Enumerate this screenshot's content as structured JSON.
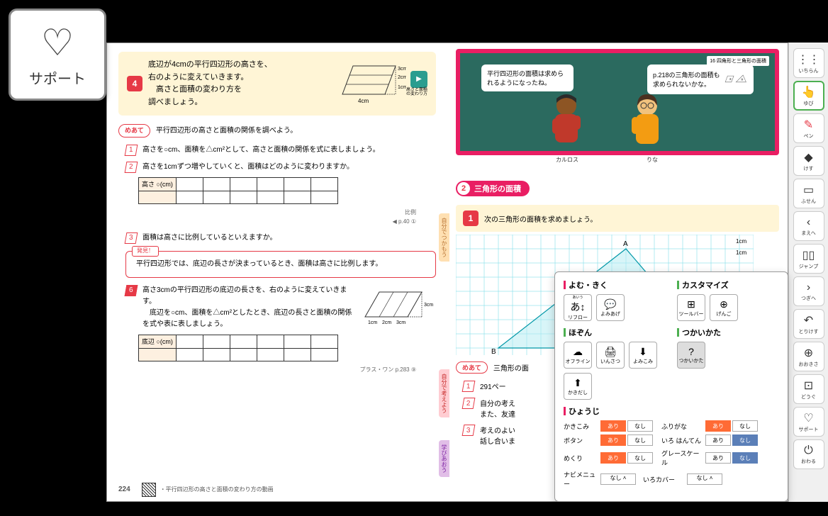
{
  "support": {
    "label": "サポート"
  },
  "left": {
    "box4": {
      "num": "4",
      "text": "底辺が4cmの平行四辺形の高さを、\n右のように変えていきます。\n　高さと面積の変わり方を\n調べましょう。",
      "dims": {
        "base": "4cm",
        "h1": "3cm",
        "h2": "2cm",
        "h3": "1cm"
      },
      "media_caption": "高さと面積の変わり方"
    },
    "meate": "平行四辺形の高さと面積の関係を調べよう。",
    "q1": "高さを○cm、面積を△cm²として、高さと面積の関係を式に表しましょう。",
    "q2": "高さを1cmずつ増やしていくと、面積はどのように変わりますか。",
    "table_header": "高さ ○(cm)",
    "page_ref1": "比例\n◀ p.40 ①",
    "q3": "面積は高さに比例しているといえますか。",
    "discover_label": "発見！",
    "discover_text": "平行四辺形では、底辺の長さが決まっているとき、面積は高さに比例します。",
    "q6_num": "6",
    "q6": "高さ3cmの平行四辺形の底辺の長さを、右のように変えていきます。\n　底辺を○cm、面積を△cm²としたとき、底辺の長さと面積の関係を式や表に表しましょう。",
    "q6_dims": {
      "h": "3cm",
      "b1": "1cm",
      "b2": "2cm",
      "b3": "3cm"
    },
    "table2_header": "底辺 ○(cm)",
    "plus_one": "プラス・ワン  p.283 ⑨",
    "page_num": "224",
    "footer": "・平行四辺形の高さと面積の変わり方の動画"
  },
  "right": {
    "header_tag": "16 四角形と三角形の面積",
    "speech1": "平行四辺形の面積は求められるようになったね。",
    "speech2": "p.218の三角形の面積も求められないかな。",
    "names": {
      "p1": "カルロス",
      "p2": "りな"
    },
    "section_num": "2",
    "section_title": "三角形の面積",
    "learn_tags": {
      "a": "じっくり深く",
      "b": "学び合おう！"
    },
    "box1_num": "1",
    "box1_text": "次の三角形の面積を求めましょう。",
    "grid_labels": {
      "a": "A",
      "b": "B",
      "unit": "1cm"
    },
    "meate2": "三角形の面",
    "q1": "291ペー",
    "q2": "自分の考え\nまた、友達",
    "q3": "考えのよい\n話し合いま",
    "vtabs": {
      "v1": "自分でつかもう",
      "v2": "自分で考えよう",
      "v3": "学びあおう"
    }
  },
  "toolbar": [
    {
      "icon": "⋮⋮",
      "label": "いちらん"
    },
    {
      "icon": "👆",
      "label": "ゆび",
      "active": true
    },
    {
      "icon": "✎",
      "label": "ペン",
      "cls": "pen"
    },
    {
      "icon": "◆",
      "label": "けす"
    },
    {
      "icon": "▭",
      "label": "ふせん"
    },
    {
      "icon": "‹",
      "label": "まえへ"
    },
    {
      "icon": "▯▯",
      "label": "ジャンプ"
    },
    {
      "icon": "›",
      "label": "つぎへ"
    },
    {
      "icon": "↶",
      "label": "とりけす"
    },
    {
      "icon": "⊕",
      "label": "おおきさ"
    },
    {
      "icon": "⊡",
      "label": "どうぐ"
    },
    {
      "icon": "♡",
      "label": "サポート"
    },
    {
      "icon": "⏻",
      "label": "おわる"
    }
  ],
  "popup": {
    "sec1": {
      "title": "よむ・きく",
      "btns": [
        {
          "ic": "あ↕",
          "lbl": "リフロー",
          "sup": "あいう"
        },
        {
          "ic": "💬",
          "lbl": "よみあげ"
        }
      ]
    },
    "sec2": {
      "title": "カスタマイズ",
      "btns": [
        {
          "ic": "⊞",
          "lbl": "ツールバー"
        },
        {
          "ic": "⊕",
          "lbl": "げんご"
        }
      ]
    },
    "sec3": {
      "title": "ほぞん",
      "btns": [
        {
          "ic": "☁",
          "lbl": "オフライン"
        },
        {
          "ic": "🖨",
          "lbl": "いんさつ"
        },
        {
          "ic": "⬇",
          "lbl": "よみこみ"
        },
        {
          "ic": "⬆",
          "lbl": "かきだし"
        }
      ]
    },
    "sec4": {
      "title": "つかいかた",
      "btns": [
        {
          "ic": "?",
          "lbl": "つかいかた"
        }
      ]
    },
    "sec5": {
      "title": "ひょうじ",
      "rows": [
        {
          "l": "かきこみ",
          "on": "あり",
          "off": "なし",
          "l2": "ふりがな",
          "on2": "あり",
          "off2": "なし",
          "st": "on-on"
        },
        {
          "l": "ボタン",
          "on": "あり",
          "off": "なし",
          "l2": "いろ はんてん",
          "on2": "あり",
          "off2": "なし",
          "st": "on-off"
        },
        {
          "l": "めくり",
          "on": "あり",
          "off": "なし",
          "l2": "グレースケール",
          "on2": "あり",
          "off2": "なし",
          "st": "on-off"
        },
        {
          "l": "ナビメニュー",
          "sel1": "なし",
          "l2": "いろカバー",
          "sel2": "なし"
        }
      ]
    }
  },
  "colors": {
    "accent": "#e63946",
    "pink": "#e91e63",
    "yellow": "#fff5d6",
    "green": "#2b6a5f",
    "orange": "#ff6b35",
    "blue": "#5b7fb8"
  }
}
